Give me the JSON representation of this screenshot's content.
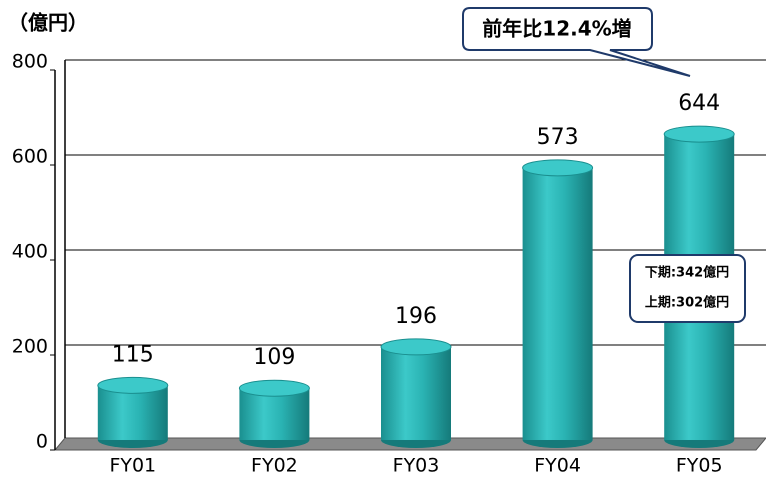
{
  "chart_data": {
    "type": "bar",
    "y_unit": "（億円）",
    "categories": [
      "FY01",
      "FY02",
      "FY03",
      "FY04",
      "FY05"
    ],
    "values": [
      115,
      109,
      196,
      573,
      644
    ],
    "color": "#2ab3b3",
    "ylim": [
      0,
      800
    ],
    "yticks": [
      0,
      200,
      400,
      600,
      800
    ],
    "grid": true,
    "annotations": {
      "callout": "前年比12.4%増",
      "breakdown": [
        "下期:342億円",
        "上期:302億円"
      ]
    }
  }
}
